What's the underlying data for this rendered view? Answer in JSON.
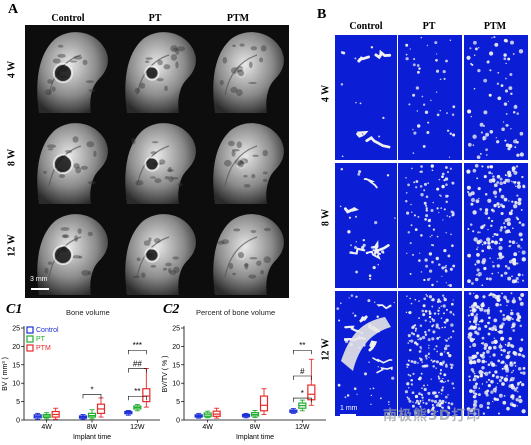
{
  "panels": {
    "a": {
      "letter": "A",
      "col_headers": [
        "Control",
        "PT",
        "PTM"
      ],
      "row_headers": [
        "4 W",
        "8 W",
        "12 W"
      ],
      "scale_bar": "3 mm"
    },
    "b": {
      "letter": "B",
      "col_headers": [
        "Control",
        "PT",
        "PTM"
      ],
      "row_headers": [
        "4 W",
        "8 W",
        "12 W"
      ],
      "scale_bar": "1 mm"
    }
  },
  "watermark": "南极熊3D打印",
  "chart_data": [
    {
      "type": "box",
      "panel_label": "C1",
      "title": "Bone volume",
      "xlabel": "Implant time",
      "ylabel": "BV ( mm³ )",
      "ylim": [
        0,
        25
      ],
      "yticks": [
        0,
        5,
        10,
        15,
        20,
        25
      ],
      "categories": [
        "4W",
        "8W",
        "12W"
      ],
      "legend": {
        "position": "top-left",
        "entries": [
          "Control",
          "PT",
          "PTM"
        ]
      },
      "series": [
        {
          "name": "Control",
          "color": "#1c2fd8",
          "boxes": [
            {
              "min": 0.2,
              "q1": 0.6,
              "median": 1.0,
              "q3": 1.4,
              "max": 1.8
            },
            {
              "min": 0.2,
              "q1": 0.5,
              "median": 0.8,
              "q3": 1.1,
              "max": 1.5
            },
            {
              "min": 1.3,
              "q1": 1.7,
              "median": 2.0,
              "q3": 2.3,
              "max": 2.6
            }
          ]
        },
        {
          "name": "PT",
          "color": "#1fae2e",
          "boxes": [
            {
              "min": 0.3,
              "q1": 0.7,
              "median": 1.1,
              "q3": 1.5,
              "max": 2.0
            },
            {
              "min": 0.3,
              "q1": 0.8,
              "median": 1.2,
              "q3": 1.8,
              "max": 2.8
            },
            {
              "min": 2.5,
              "q1": 3.0,
              "median": 3.4,
              "q3": 3.8,
              "max": 4.2
            }
          ]
        },
        {
          "name": "PTM",
          "color": "#e52a2a",
          "boxes": [
            {
              "min": 0.2,
              "q1": 0.8,
              "median": 1.5,
              "q3": 2.3,
              "max": 3.2
            },
            {
              "min": 0.8,
              "q1": 1.8,
              "median": 3.0,
              "q3": 4.3,
              "max": 6.0
            },
            {
              "min": 3.5,
              "q1": 5.0,
              "median": 6.5,
              "q3": 8.5,
              "max": 14.0
            }
          ]
        }
      ],
      "annotations": [
        {
          "text": "*",
          "category": "8W",
          "y": 7.5
        },
        {
          "text": "**",
          "category": "12W",
          "y": 7.0
        },
        {
          "text": "##",
          "category": "12W",
          "y": 14.5
        },
        {
          "text": "***",
          "category": "12W",
          "y": 19.5
        }
      ]
    },
    {
      "type": "box",
      "panel_label": "C2",
      "title": "Percent of bone volume",
      "xlabel": "Implant time",
      "ylabel": "BV/TV ( % )",
      "ylim": [
        0,
        25
      ],
      "yticks": [
        0,
        5,
        10,
        15,
        20,
        25
      ],
      "categories": [
        "4W",
        "8W",
        "12W"
      ],
      "series": [
        {
          "name": "Control",
          "color": "#1c2fd8",
          "boxes": [
            {
              "min": 0.5,
              "q1": 0.8,
              "median": 1.1,
              "q3": 1.4,
              "max": 1.8
            },
            {
              "min": 0.6,
              "q1": 0.9,
              "median": 1.2,
              "q3": 1.5,
              "max": 1.8
            },
            {
              "min": 1.8,
              "q1": 2.1,
              "median": 2.4,
              "q3": 2.7,
              "max": 3.1
            }
          ]
        },
        {
          "name": "PT",
          "color": "#1fae2e",
          "boxes": [
            {
              "min": 0.6,
              "q1": 0.9,
              "median": 1.4,
              "q3": 1.9,
              "max": 2.4
            },
            {
              "min": 0.7,
              "q1": 1.1,
              "median": 1.5,
              "q3": 2.0,
              "max": 2.6
            },
            {
              "min": 2.5,
              "q1": 3.2,
              "median": 3.9,
              "q3": 4.6,
              "max": 5.4
            }
          ]
        },
        {
          "name": "PTM",
          "color": "#e52a2a",
          "boxes": [
            {
              "min": 0.5,
              "q1": 1.0,
              "median": 1.6,
              "q3": 2.4,
              "max": 3.2
            },
            {
              "min": 1.5,
              "q1": 2.5,
              "median": 4.0,
              "q3": 6.5,
              "max": 8.5
            },
            {
              "min": 4.0,
              "q1": 5.5,
              "median": 7.0,
              "q3": 9.5,
              "max": 16.5
            }
          ]
        }
      ],
      "annotations": [
        {
          "text": "*",
          "category": "12W",
          "y": 6.5
        },
        {
          "text": "#",
          "category": "12W",
          "y": 12.5
        },
        {
          "text": "**",
          "category": "12W",
          "y": 19.5
        }
      ]
    }
  ]
}
